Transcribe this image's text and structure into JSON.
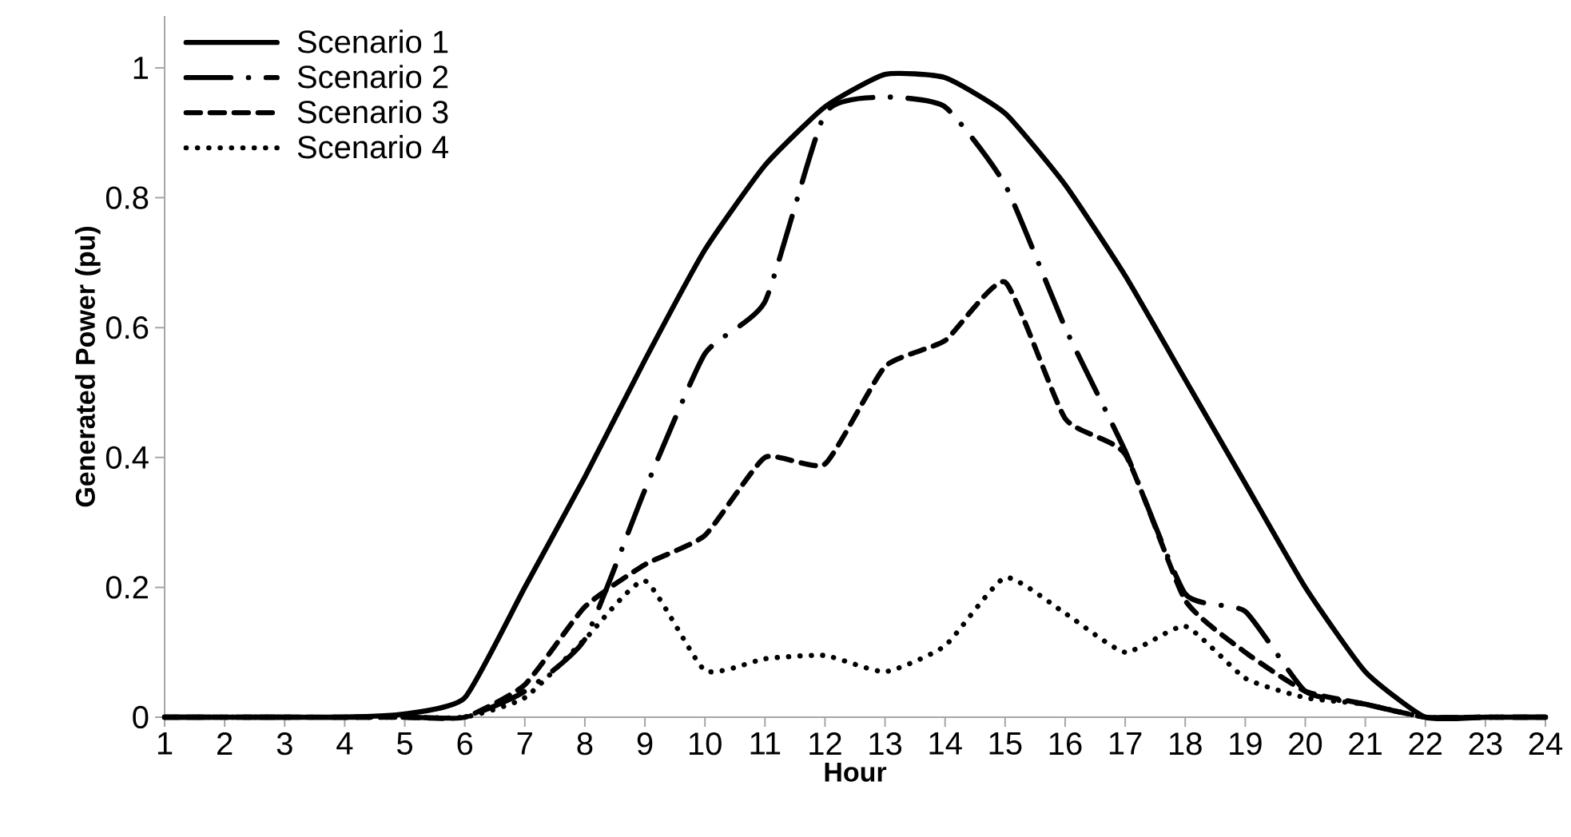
{
  "chart_data": {
    "type": "line",
    "xlabel": "Hour",
    "ylabel": "Generated  Power (pu)",
    "x": [
      1,
      2,
      3,
      4,
      5,
      6,
      7,
      8,
      9,
      10,
      11,
      12,
      13,
      14,
      15,
      16,
      17,
      18,
      19,
      20,
      21,
      22,
      23,
      24
    ],
    "xlim": [
      1,
      24
    ],
    "xticks": [
      1,
      2,
      3,
      4,
      5,
      6,
      7,
      8,
      9,
      10,
      11,
      12,
      13,
      14,
      15,
      16,
      17,
      18,
      19,
      20,
      21,
      22,
      23,
      24
    ],
    "ylim": [
      0,
      1.08
    ],
    "yticks": [
      0,
      0.2,
      0.4,
      0.6,
      0.8,
      1
    ],
    "grid": false,
    "legend": "top left",
    "marker": "none",
    "series": [
      {
        "name": "Scenario 1",
        "color": "#000000",
        "line_style": "solid",
        "values": [
          0,
          0,
          0,
          0,
          0.005,
          0.03,
          0.2,
          0.37,
          0.55,
          0.72,
          0.85,
          0.94,
          0.99,
          0.985,
          0.93,
          0.82,
          0.68,
          0.52,
          0.36,
          0.2,
          0.07,
          0,
          0,
          0
        ]
      },
      {
        "name": "Scenario 2",
        "color": "#000000",
        "line_style": "dashdot",
        "values": [
          0,
          0,
          0,
          0,
          0,
          0,
          0.04,
          0.12,
          0.35,
          0.56,
          0.64,
          0.93,
          0.955,
          0.94,
          0.82,
          0.6,
          0.41,
          0.19,
          0.163,
          0.04,
          0.02,
          0,
          0,
          0
        ]
      },
      {
        "name": "Scenario 3",
        "color": "#000000",
        "line_style": "dashed",
        "values": [
          0,
          0,
          0,
          0,
          0,
          0,
          0.05,
          0.17,
          0.235,
          0.28,
          0.4,
          0.39,
          0.54,
          0.58,
          0.67,
          0.46,
          0.405,
          0.18,
          0.1,
          0.04,
          0.02,
          0,
          0,
          0
        ]
      },
      {
        "name": "Scenario 4",
        "color": "#000000",
        "line_style": "dotted",
        "values": [
          0,
          0,
          0,
          0,
          0,
          0,
          0.03,
          0.12,
          0.21,
          0.072,
          0.09,
          0.095,
          0.07,
          0.11,
          0.215,
          0.16,
          0.1,
          0.14,
          0.06,
          0.03,
          0.02,
          0,
          0,
          0
        ]
      }
    ]
  }
}
